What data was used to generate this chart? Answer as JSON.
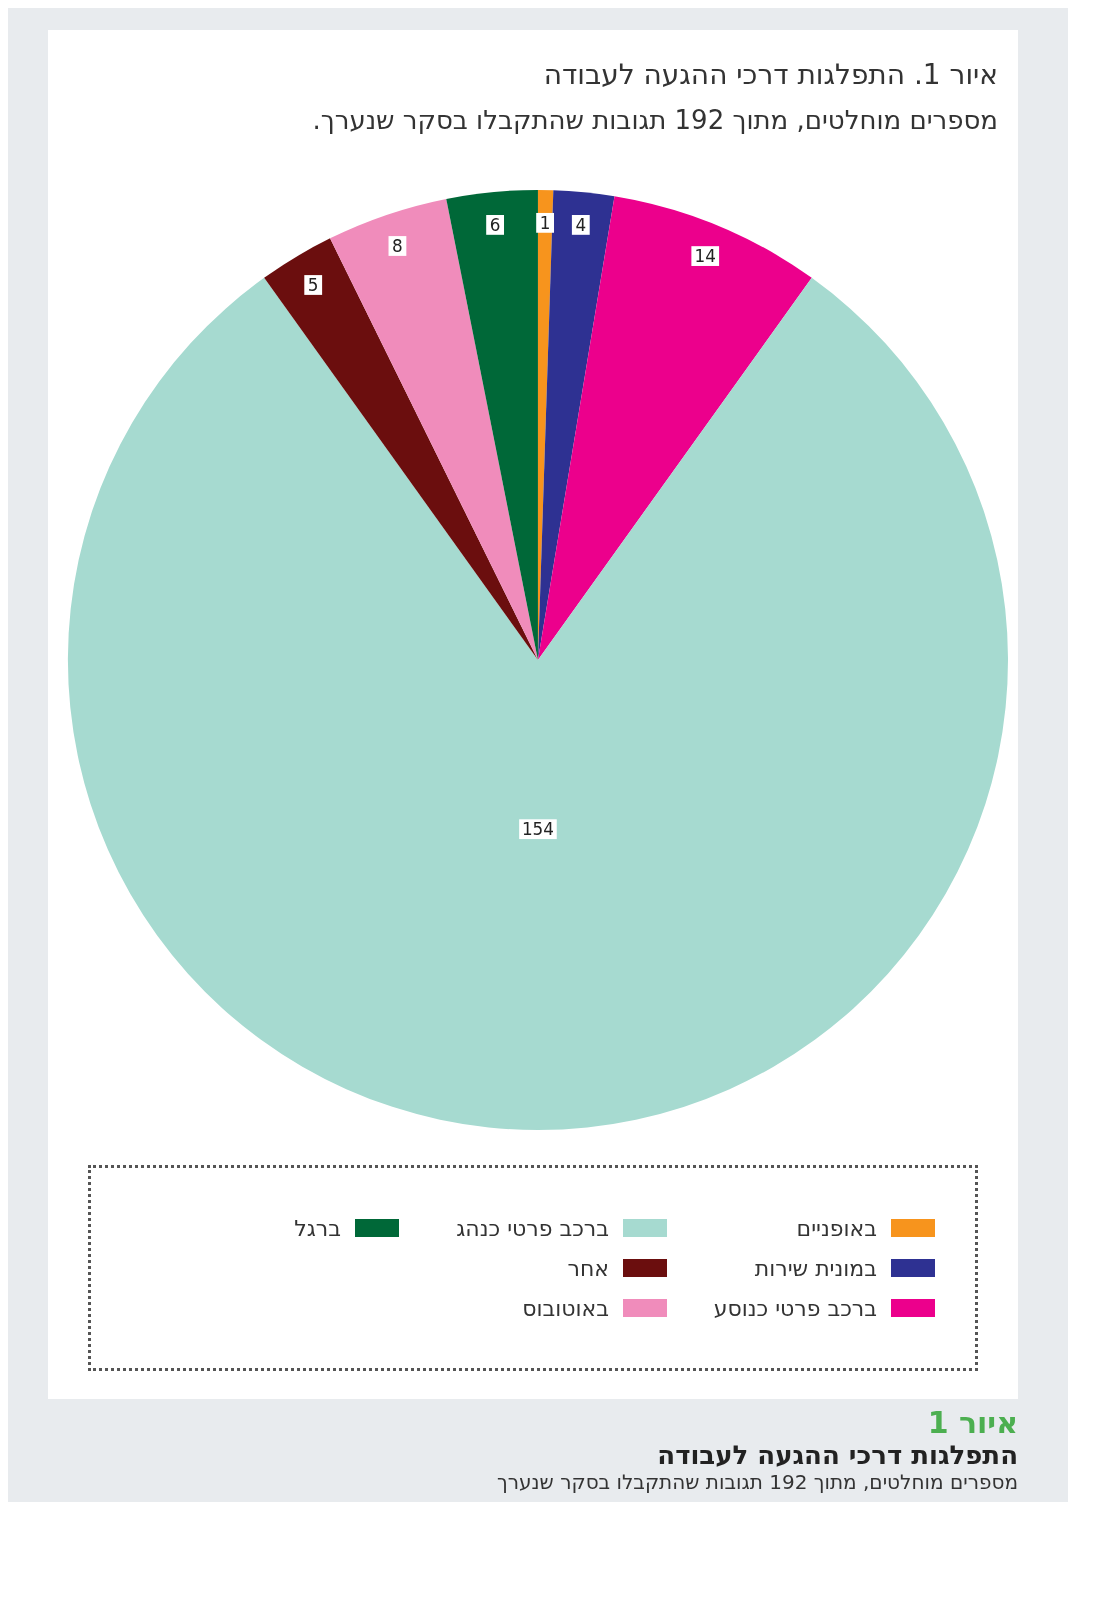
{
  "chart_data": {
    "type": "pie",
    "title": "איור 1. התפלגות דרכי ההגעה לעבודה",
    "subtitle": "מספרים מוחלטים, מתוך 192 תגובות שהתקבלו בסקר שנערך.",
    "categories": [
      "באופניים",
      "במונית שירות",
      "ברכב פרטי כנוסע",
      "ברכב פרטי כנהג",
      "אחר",
      "באוטובוס",
      "ברגל"
    ],
    "values": [
      1,
      4,
      14,
      154,
      5,
      8,
      6
    ],
    "colors": [
      "#f7941d",
      "#2e3192",
      "#ec008c",
      "#a6dad0",
      "#6b0e0e",
      "#f08cbb",
      "#006838"
    ],
    "data_labels": true,
    "legend": "bottom",
    "annotations": [
      "איור 1",
      "התפלגות דרכי ההגעה לעבודה",
      "מספרים מוחלטים, מתוך 192 תגובות שהתקבלו בסקר שנערך"
    ]
  }
}
